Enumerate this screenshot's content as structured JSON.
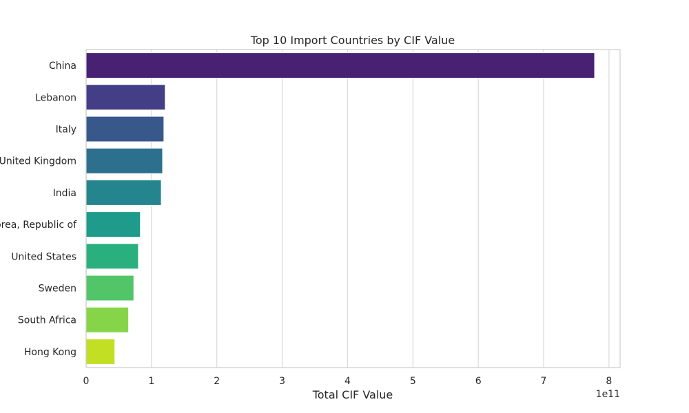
{
  "chart_data": {
    "type": "bar",
    "orientation": "horizontal",
    "title": "Top 10 Import Countries by CIF Value",
    "xlabel": "Total CIF Value",
    "ylabel": "",
    "x_scale_label": "1e11",
    "xlim": [
      0,
      8.17
    ],
    "x_ticks": [
      0,
      1,
      2,
      3,
      4,
      5,
      6,
      7,
      8
    ],
    "x_tick_labels": [
      "0",
      "1",
      "2",
      "3",
      "4",
      "5",
      "6",
      "7",
      "8"
    ],
    "categories": [
      "China",
      "Lebanon",
      "Italy",
      "United Kingdom",
      "India",
      "Korea, Republic of",
      "United States",
      "Sweden",
      "South Africa",
      "Hong Kong"
    ],
    "values": [
      7.78,
      1.21,
      1.19,
      1.17,
      1.15,
      0.83,
      0.8,
      0.73,
      0.65,
      0.44
    ],
    "value_units": "1e11",
    "grid": true,
    "grid_axis": "x",
    "legend": "none",
    "palette": "viridis",
    "colors": [
      "#482173",
      "#433e85",
      "#38588c",
      "#2d708e",
      "#25858e",
      "#1e9b8a",
      "#2ab07f",
      "#52c569",
      "#86d549",
      "#c2df23"
    ]
  }
}
